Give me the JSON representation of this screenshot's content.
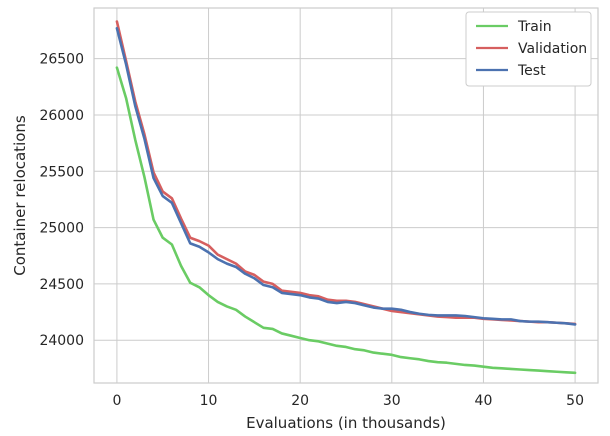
{
  "chart_data": {
    "type": "line",
    "title": "",
    "xlabel": "Evaluations (in thousands)",
    "ylabel": "Container relocations",
    "xlim": [
      -2.5,
      52.5
    ],
    "ylim": [
      23620,
      26950
    ],
    "x_ticks": [
      0,
      10,
      20,
      30,
      40,
      50
    ],
    "y_ticks": [
      24000,
      24500,
      25000,
      25500,
      26000,
      26500
    ],
    "x_tick_labels": [
      "0",
      "10",
      "20",
      "30",
      "40",
      "50"
    ],
    "y_tick_labels": [
      "24000",
      "24500",
      "25000",
      "25500",
      "26000",
      "26500"
    ],
    "grid": true,
    "legend_position": "top-right",
    "x": [
      0,
      1,
      2,
      3,
      4,
      5,
      6,
      7,
      8,
      9,
      10,
      11,
      12,
      13,
      14,
      15,
      16,
      17,
      18,
      19,
      20,
      21,
      22,
      23,
      24,
      25,
      26,
      27,
      28,
      29,
      30,
      31,
      32,
      33,
      34,
      35,
      36,
      37,
      38,
      39,
      40,
      41,
      42,
      43,
      44,
      45,
      46,
      47,
      48,
      49,
      50
    ],
    "series": [
      {
        "name": "Train",
        "color": "#6acc64",
        "values": [
          26420,
          26150,
          25780,
          25450,
          25070,
          24910,
          24850,
          24660,
          24510,
          24470,
          24400,
          24340,
          24300,
          24270,
          24210,
          24160,
          24110,
          24100,
          24060,
          24040,
          24020,
          24000,
          23990,
          23970,
          23950,
          23940,
          23920,
          23910,
          23890,
          23880,
          23870,
          23850,
          23840,
          23830,
          23815,
          23805,
          23800,
          23790,
          23780,
          23775,
          23765,
          23755,
          23750,
          23745,
          23740,
          23735,
          23730,
          23725,
          23720,
          23715,
          23710
        ]
      },
      {
        "name": "Validation",
        "color": "#d65f5f",
        "values": [
          26830,
          26480,
          26120,
          25830,
          25490,
          25320,
          25260,
          25080,
          24910,
          24880,
          24840,
          24760,
          24720,
          24680,
          24610,
          24580,
          24520,
          24500,
          24440,
          24430,
          24420,
          24400,
          24390,
          24360,
          24350,
          24350,
          24340,
          24320,
          24300,
          24280,
          24260,
          24250,
          24240,
          24230,
          24220,
          24210,
          24205,
          24200,
          24200,
          24200,
          24190,
          24185,
          24180,
          24175,
          24170,
          24165,
          24160,
          24160,
          24155,
          24150,
          24145
        ]
      },
      {
        "name": "Test",
        "color": "#4c72b0",
        "values": [
          26770,
          26450,
          26080,
          25790,
          25440,
          25280,
          25220,
          25040,
          24860,
          24830,
          24780,
          24720,
          24680,
          24650,
          24590,
          24550,
          24490,
          24470,
          24420,
          24410,
          24400,
          24380,
          24370,
          24340,
          24330,
          24340,
          24330,
          24310,
          24290,
          24280,
          24280,
          24270,
          24250,
          24235,
          24225,
          24220,
          24220,
          24220,
          24215,
          24205,
          24195,
          24190,
          24185,
          24185,
          24170,
          24165,
          24165,
          24160,
          24155,
          24150,
          24140
        ]
      }
    ]
  }
}
